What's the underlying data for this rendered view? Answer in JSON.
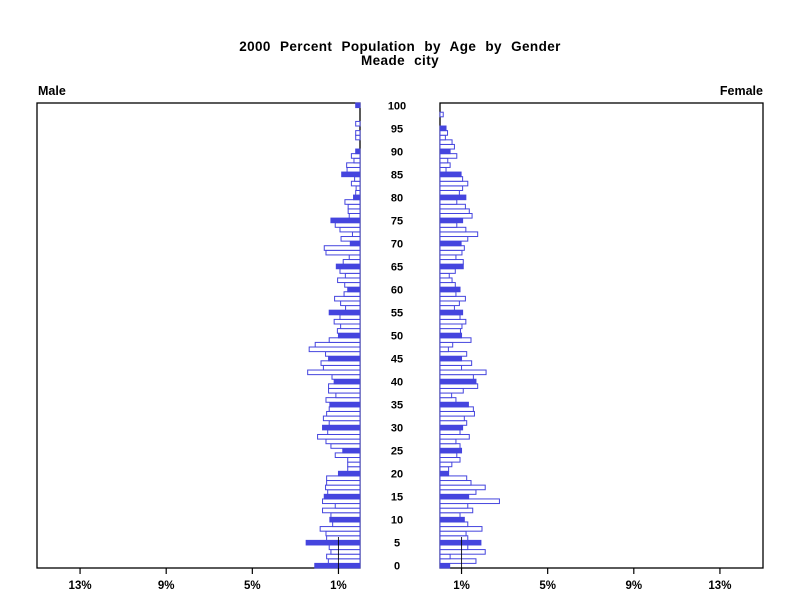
{
  "title": {
    "line1": "2000 Percent Population by Age by Gender",
    "line2": "Meade city"
  },
  "panel_labels": {
    "male": "Male",
    "female": "Female"
  },
  "axis": {
    "male_tick_labels": [
      "13%",
      "9%",
      "5%",
      "1%"
    ],
    "female_tick_labels": [
      "1%",
      "5%",
      "9%",
      "13%"
    ],
    "tick_values": [
      1,
      5,
      9,
      13
    ],
    "max_percent": 15,
    "age_tick_labels": [
      "0",
      "5",
      "10",
      "15",
      "20",
      "25",
      "30",
      "35",
      "40",
      "45",
      "50",
      "55",
      "60",
      "65",
      "70",
      "75",
      "80",
      "85",
      "90",
      "95",
      "100"
    ]
  },
  "colors": {
    "bar_blue": "#4545de",
    "bar_outline_fill": "#ffffff",
    "axis_black": "#000000",
    "background": "#ffffff"
  },
  "chart_data": {
    "type": "bar",
    "subtype": "population-pyramid",
    "title": "2000 Percent Population by Age by Gender",
    "subtitle": "Meade city",
    "orientation": "horizontal",
    "units": "percent of total population",
    "age_axis": {
      "min": 0,
      "max": 100,
      "label_step": 5
    },
    "percent_axis_range_each_side": [
      0,
      15
    ],
    "solid_bar_rule": "ages divisible by 5 are drawn as solid filled bars; all other ages are white bars with blue outline",
    "legend": "none",
    "series": [
      {
        "name": "Male",
        "side": "left",
        "values_by_age_0_to_100": [
          2.1,
          1.47,
          1.55,
          1.35,
          1.43,
          2.5,
          1.55,
          1.58,
          1.85,
          1.27,
          1.4,
          1.35,
          1.74,
          1.15,
          1.74,
          1.66,
          1.5,
          1.6,
          1.55,
          1.55,
          1.0,
          0.57,
          0.57,
          0.57,
          1.15,
          0.8,
          1.35,
          1.58,
          1.97,
          1.5,
          1.74,
          1.43,
          1.7,
          1.55,
          1.43,
          1.4,
          1.58,
          1.12,
          1.46,
          1.46,
          1.2,
          1.3,
          2.43,
          1.7,
          1.81,
          1.46,
          1.6,
          2.36,
          2.08,
          1.43,
          1.0,
          1.05,
          0.9,
          1.2,
          0.93,
          1.43,
          0.67,
          0.9,
          1.18,
          0.74,
          0.57,
          0.71,
          1.04,
          0.68,
          0.93,
          1.1,
          0.78,
          0.5,
          1.58,
          1.66,
          0.45,
          0.88,
          0.35,
          0.93,
          1.15,
          1.35,
          0.5,
          0.55,
          0.55,
          0.7,
          0.3,
          0.2,
          0.18,
          0.4,
          0.25,
          0.85,
          0.6,
          0.62,
          0.28,
          0.4,
          0.2,
          0.0,
          0.0,
          0.2,
          0.2,
          0.0,
          0.2,
          0.0,
          0.0,
          0.0,
          0.2
        ]
      },
      {
        "name": "Female",
        "side": "right",
        "values_by_age_0_to_100": [
          0.45,
          1.67,
          0.47,
          2.1,
          1.29,
          1.9,
          1.29,
          1.21,
          1.95,
          1.29,
          1.13,
          0.93,
          1.52,
          1.29,
          2.76,
          1.33,
          1.67,
          2.1,
          1.44,
          1.24,
          0.4,
          0.4,
          0.55,
          0.93,
          0.78,
          1.0,
          0.93,
          0.74,
          1.36,
          0.93,
          1.05,
          1.24,
          1.13,
          1.6,
          1.55,
          1.32,
          0.74,
          0.54,
          1.08,
          1.75,
          1.67,
          1.55,
          2.14,
          1.0,
          1.47,
          1.0,
          1.24,
          0.39,
          0.59,
          1.44,
          1.0,
          0.95,
          1.02,
          1.2,
          0.93,
          1.05,
          0.67,
          0.9,
          1.18,
          0.74,
          0.93,
          0.71,
          0.56,
          0.43,
          0.71,
          1.08,
          1.08,
          0.74,
          1.02,
          1.13,
          0.98,
          1.29,
          1.75,
          1.2,
          0.78,
          1.05,
          1.49,
          1.36,
          1.18,
          0.78,
          1.2,
          0.9,
          1.05,
          1.29,
          1.05,
          0.98,
          0.28,
          0.47,
          0.36,
          0.78,
          0.47,
          0.67,
          0.56,
          0.25,
          0.35,
          0.28,
          0.0,
          0.0,
          0.15,
          0.0,
          0.0
        ]
      }
    ]
  }
}
